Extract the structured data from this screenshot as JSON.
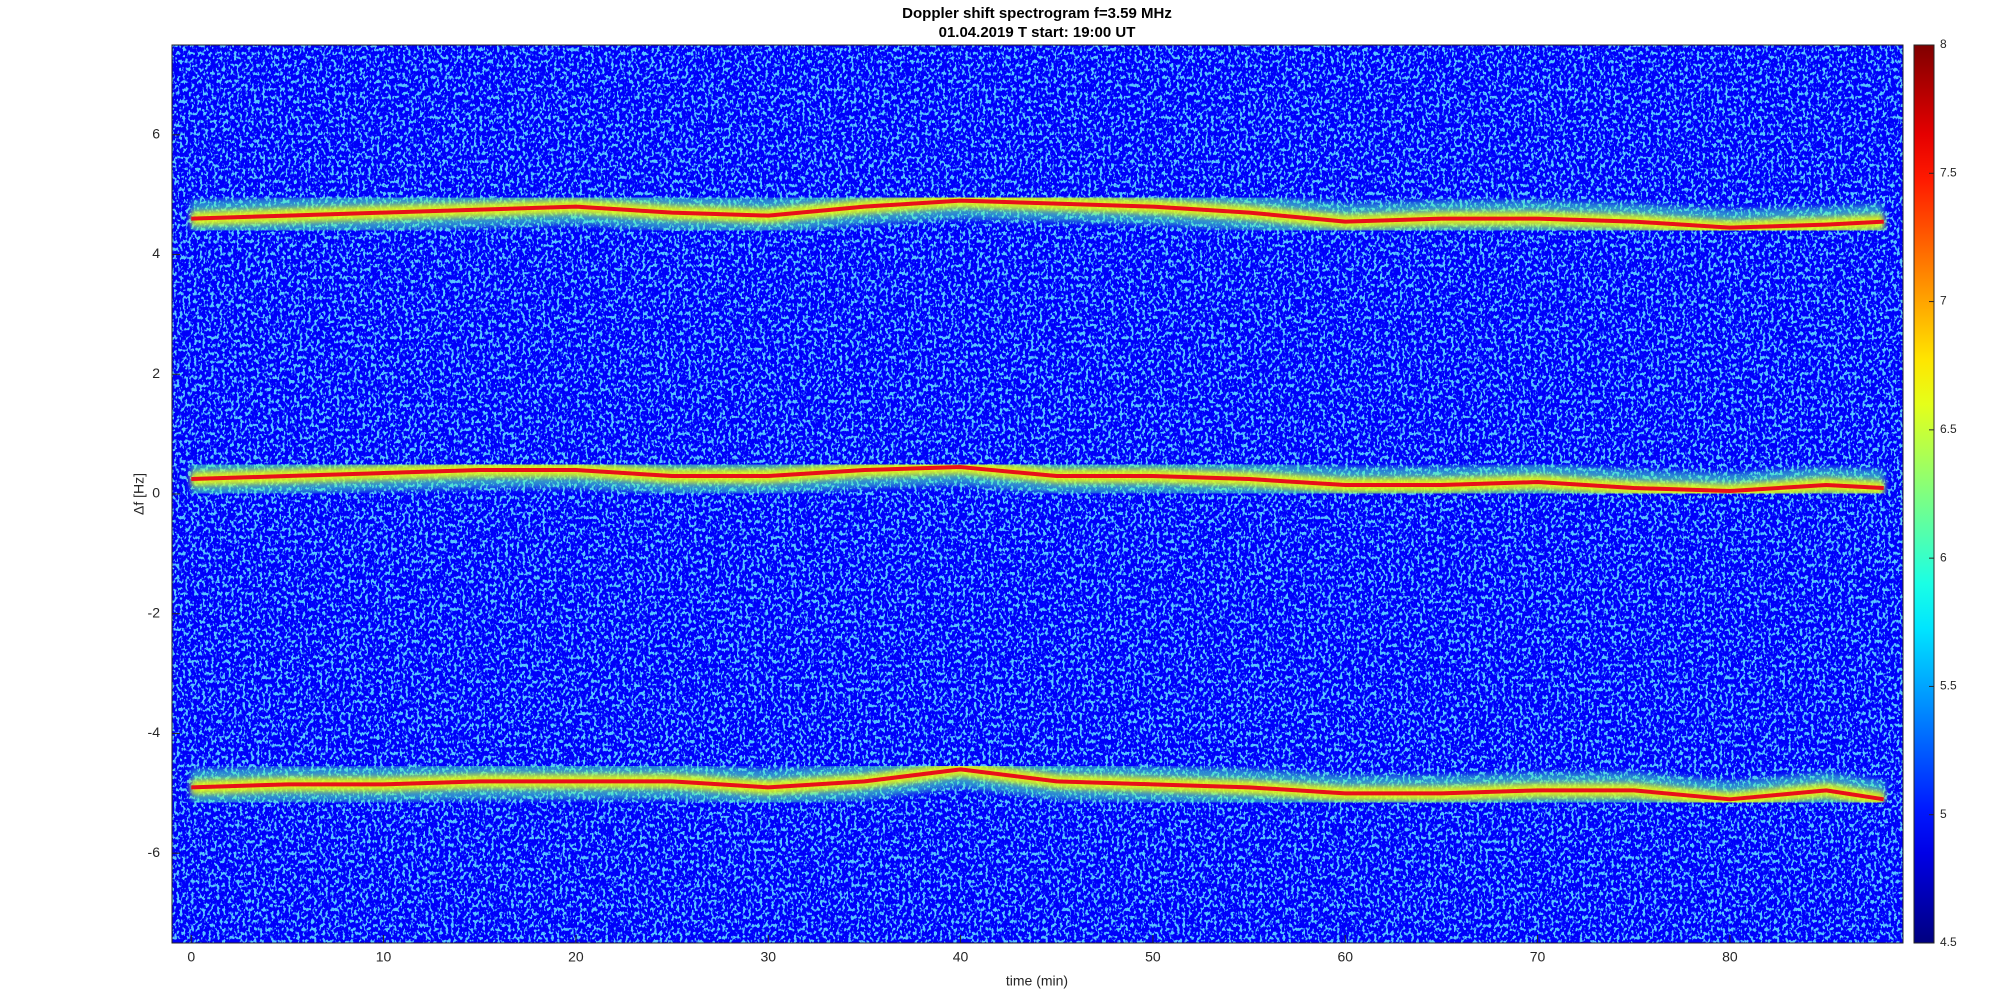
{
  "chart_data": {
    "type": "spectrogram",
    "title": "Doppler shift spectrogram f=3.59 MHz",
    "subtitle": "01.04.2019   T start: 19:00 UT",
    "x_label": "time (min)",
    "y_label": "Δf [Hz]",
    "x": [
      0,
      5,
      10,
      15,
      20,
      25,
      30,
      35,
      40,
      45,
      50,
      55,
      60,
      65,
      70,
      75,
      80,
      85,
      88
    ],
    "series": [
      {
        "color": "#e8101a",
        "values": [
          4.6,
          4.65,
          4.7,
          4.75,
          4.8,
          4.7,
          4.65,
          4.8,
          4.9,
          4.85,
          4.8,
          4.7,
          4.55,
          4.6,
          4.6,
          4.55,
          4.45,
          4.5,
          4.55
        ]
      },
      {
        "color": "#e8101a",
        "values": [
          0.25,
          0.3,
          0.35,
          0.4,
          0.4,
          0.3,
          0.3,
          0.4,
          0.45,
          0.3,
          0.3,
          0.25,
          0.15,
          0.15,
          0.2,
          0.1,
          0.05,
          0.15,
          0.1
        ]
      },
      {
        "color": "#e8101a",
        "values": [
          -4.9,
          -4.85,
          -4.85,
          -4.8,
          -4.8,
          -4.8,
          -4.9,
          -4.8,
          -4.6,
          -4.8,
          -4.85,
          -4.9,
          -5.0,
          -5.0,
          -4.95,
          -4.95,
          -5.1,
          -4.95,
          -5.1
        ]
      }
    ],
    "xlim": [
      -1,
      89
    ],
    "ylim": [
      -7.5,
      7.5
    ],
    "xticks": [
      0,
      10,
      20,
      30,
      40,
      50,
      60,
      70,
      80
    ],
    "yticks": [
      -6,
      -4,
      -2,
      0,
      2,
      4,
      6
    ],
    "colormap": "jet",
    "clim": [
      4.5,
      8
    ],
    "cticks": [
      4.5,
      5,
      5.5,
      6,
      6.5,
      7,
      7.5,
      8
    ]
  }
}
